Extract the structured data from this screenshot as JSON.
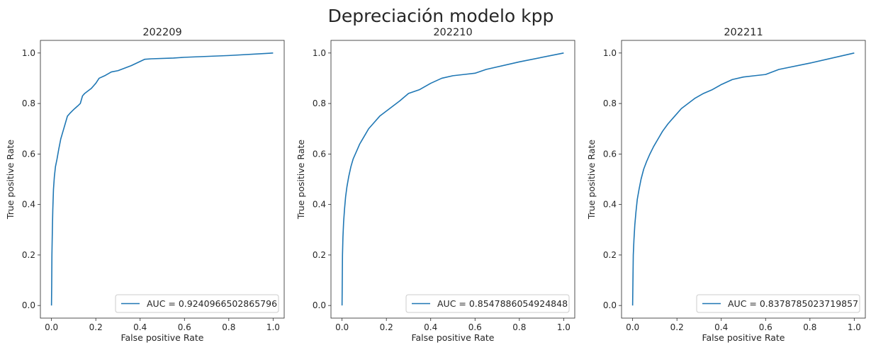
{
  "figure": {
    "suptitle": "Depreciación modelo kpp",
    "line_color": "#1f77b4"
  },
  "chart_data": [
    {
      "type": "line",
      "title": "202209",
      "xlabel": "False positive Rate",
      "ylabel": "True positive Rate",
      "xlim": [
        -0.05,
        1.05
      ],
      "ylim": [
        -0.05,
        1.05
      ],
      "xticks": [
        "0.0",
        "0.2",
        "0.4",
        "0.6",
        "0.8",
        "1.0"
      ],
      "yticks": [
        "0.0",
        "0.2",
        "0.4",
        "0.6",
        "0.8",
        "1.0"
      ],
      "legend_position": "lower-right",
      "grid": false,
      "series": [
        {
          "name": "AUC = 0.9240966502865796",
          "x": [
            0.0,
            0.001,
            0.002,
            0.004,
            0.006,
            0.009,
            0.013,
            0.018,
            0.025,
            0.033,
            0.042,
            0.052,
            0.062,
            0.072,
            0.082,
            0.093,
            0.105,
            0.118,
            0.13,
            0.14,
            0.15,
            0.165,
            0.18,
            0.19,
            0.2,
            0.215,
            0.24,
            0.27,
            0.3,
            0.36,
            0.42,
            0.45,
            0.55,
            0.6,
            0.8,
            1.0
          ],
          "y": [
            0.0,
            0.08,
            0.2,
            0.3,
            0.38,
            0.46,
            0.51,
            0.55,
            0.58,
            0.62,
            0.66,
            0.69,
            0.72,
            0.75,
            0.76,
            0.77,
            0.78,
            0.79,
            0.8,
            0.83,
            0.84,
            0.85,
            0.86,
            0.87,
            0.88,
            0.9,
            0.91,
            0.925,
            0.93,
            0.95,
            0.975,
            0.977,
            0.98,
            0.983,
            0.99,
            1.0
          ]
        }
      ]
    },
    {
      "type": "line",
      "title": "202210",
      "xlabel": "False positive Rate",
      "ylabel": "True positive Rate",
      "xlim": [
        -0.05,
        1.05
      ],
      "ylim": [
        -0.05,
        1.05
      ],
      "xticks": [
        "0.0",
        "0.2",
        "0.4",
        "0.6",
        "0.8",
        "1.0"
      ],
      "yticks": [
        "0.0",
        "0.2",
        "0.4",
        "0.6",
        "0.8",
        "1.0"
      ],
      "legend_position": "lower-right",
      "grid": false,
      "series": [
        {
          "name": "AUC = 0.8547886054924848",
          "x": [
            0.0,
            0.002,
            0.004,
            0.007,
            0.011,
            0.016,
            0.022,
            0.03,
            0.04,
            0.05,
            0.065,
            0.08,
            0.1,
            0.12,
            0.14,
            0.17,
            0.2,
            0.23,
            0.26,
            0.3,
            0.35,
            0.4,
            0.45,
            0.5,
            0.55,
            0.6,
            0.65,
            0.8,
            1.0
          ],
          "y": [
            0.0,
            0.2,
            0.27,
            0.33,
            0.38,
            0.43,
            0.47,
            0.51,
            0.55,
            0.58,
            0.61,
            0.64,
            0.67,
            0.7,
            0.72,
            0.75,
            0.77,
            0.79,
            0.81,
            0.84,
            0.855,
            0.88,
            0.9,
            0.91,
            0.915,
            0.92,
            0.935,
            0.965,
            1.0
          ]
        }
      ]
    },
    {
      "type": "line",
      "title": "202211",
      "xlabel": "False positive Rate",
      "ylabel": "True positive Rate",
      "xlim": [
        -0.05,
        1.05
      ],
      "ylim": [
        -0.05,
        1.05
      ],
      "xticks": [
        "0.0",
        "0.2",
        "0.4",
        "0.6",
        "0.8",
        "1.0"
      ],
      "yticks": [
        "0.0",
        "0.2",
        "0.4",
        "0.6",
        "0.8",
        "1.0"
      ],
      "legend_position": "lower-right",
      "grid": false,
      "series": [
        {
          "name": "AUC = 0.8378785023719857",
          "x": [
            0.0,
            0.003,
            0.006,
            0.01,
            0.015,
            0.021,
            0.029,
            0.038,
            0.05,
            0.063,
            0.078,
            0.095,
            0.115,
            0.135,
            0.16,
            0.19,
            0.22,
            0.25,
            0.28,
            0.32,
            0.36,
            0.4,
            0.45,
            0.5,
            0.55,
            0.6,
            0.66,
            0.8,
            1.0
          ],
          "y": [
            0.0,
            0.2,
            0.26,
            0.32,
            0.37,
            0.42,
            0.46,
            0.5,
            0.54,
            0.57,
            0.6,
            0.63,
            0.66,
            0.69,
            0.72,
            0.75,
            0.78,
            0.8,
            0.82,
            0.84,
            0.855,
            0.875,
            0.895,
            0.905,
            0.91,
            0.915,
            0.935,
            0.96,
            1.0
          ]
        }
      ]
    }
  ]
}
